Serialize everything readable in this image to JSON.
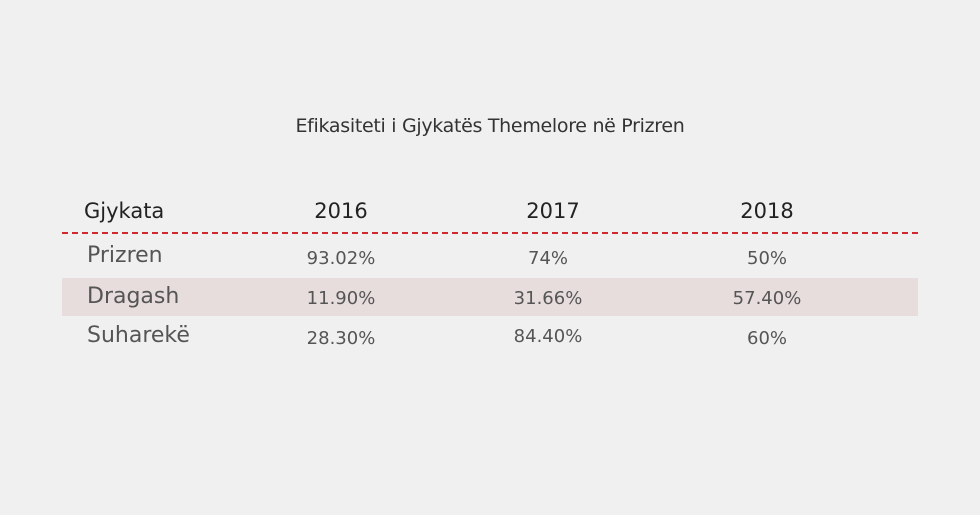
{
  "chart_data": {
    "type": "table",
    "title": "Efikasiteti i Gjykatës Themelore në Prizren",
    "columns": [
      "Gjykata",
      "2016",
      "2017",
      "2018"
    ],
    "rows": [
      {
        "label": "Prizren",
        "values": [
          "93.02%",
          "74%",
          "50%"
        ]
      },
      {
        "label": "Dragash",
        "values": [
          "11.90%",
          "31.66%",
          "57.40%"
        ]
      },
      {
        "label": "Suharekë",
        "values": [
          "28.30%",
          "84.40%",
          "60%"
        ]
      }
    ],
    "highlighted_row": "Dragash",
    "colors": {
      "background": "#f0f0f0",
      "highlight": "#e8dddd",
      "divider": "#d0282e"
    }
  }
}
